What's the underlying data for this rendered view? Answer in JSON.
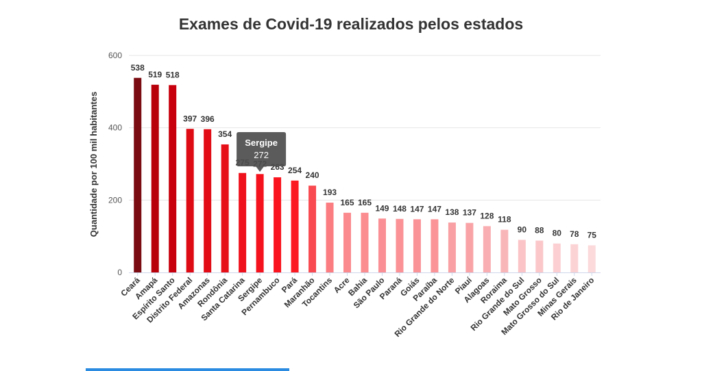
{
  "chart_data": {
    "type": "bar",
    "title": "Exames de Covid-19 realizados pelos estados",
    "xlabel": "",
    "ylabel": "Quantidade por 100 mil habitantes",
    "ylim": [
      0,
      600
    ],
    "yticks": [
      "0",
      "200",
      "400",
      "600"
    ],
    "grid": true,
    "categories": [
      "Ceará",
      "Amapá",
      "Espírito Santo",
      "Distrito Federal",
      "Amazonas",
      "Rondônia",
      "Santa Catarina",
      "Sergipe",
      "Pernambuco",
      "Pará",
      "Maranhão",
      "Tocantins",
      "Acre",
      "Bahia",
      "São Paulo",
      "Paraná",
      "Goiás",
      "Paraíba",
      "Rio Grande do Norte",
      "Piauí",
      "Alagoas",
      "Roraima",
      "Rio Grande do Sul",
      "Mato Grosso",
      "Mato Grosso do Sul",
      "Minas Gerais",
      "Rio de Janeiro"
    ],
    "values": [
      538,
      519,
      518,
      397,
      396,
      354,
      275,
      272,
      263,
      254,
      240,
      193,
      165,
      165,
      149,
      148,
      147,
      147,
      138,
      137,
      128,
      118,
      90,
      88,
      80,
      78,
      75
    ],
    "colors": [
      "#7a0c12",
      "#b8000b",
      "#c8000d",
      "#de0a14",
      "#e10c16",
      "#e61018",
      "#ef121c",
      "#f5121c",
      "#fa141e",
      "#fc1a22",
      "#f84a50",
      "#fb7d82",
      "#fb8a8e",
      "#fb8c90",
      "#fa9095",
      "#fa9296",
      "#fa9397",
      "#fa9498",
      "#f9a0a4",
      "#f9a3a7",
      "#f9aeb1",
      "#f9b6b9",
      "#fbc4c6",
      "#fbc7c9",
      "#fcd0d2",
      "#fcd3d5",
      "#fcdadb"
    ],
    "tooltip": {
      "category": "Sergipe",
      "value": "272"
    }
  }
}
